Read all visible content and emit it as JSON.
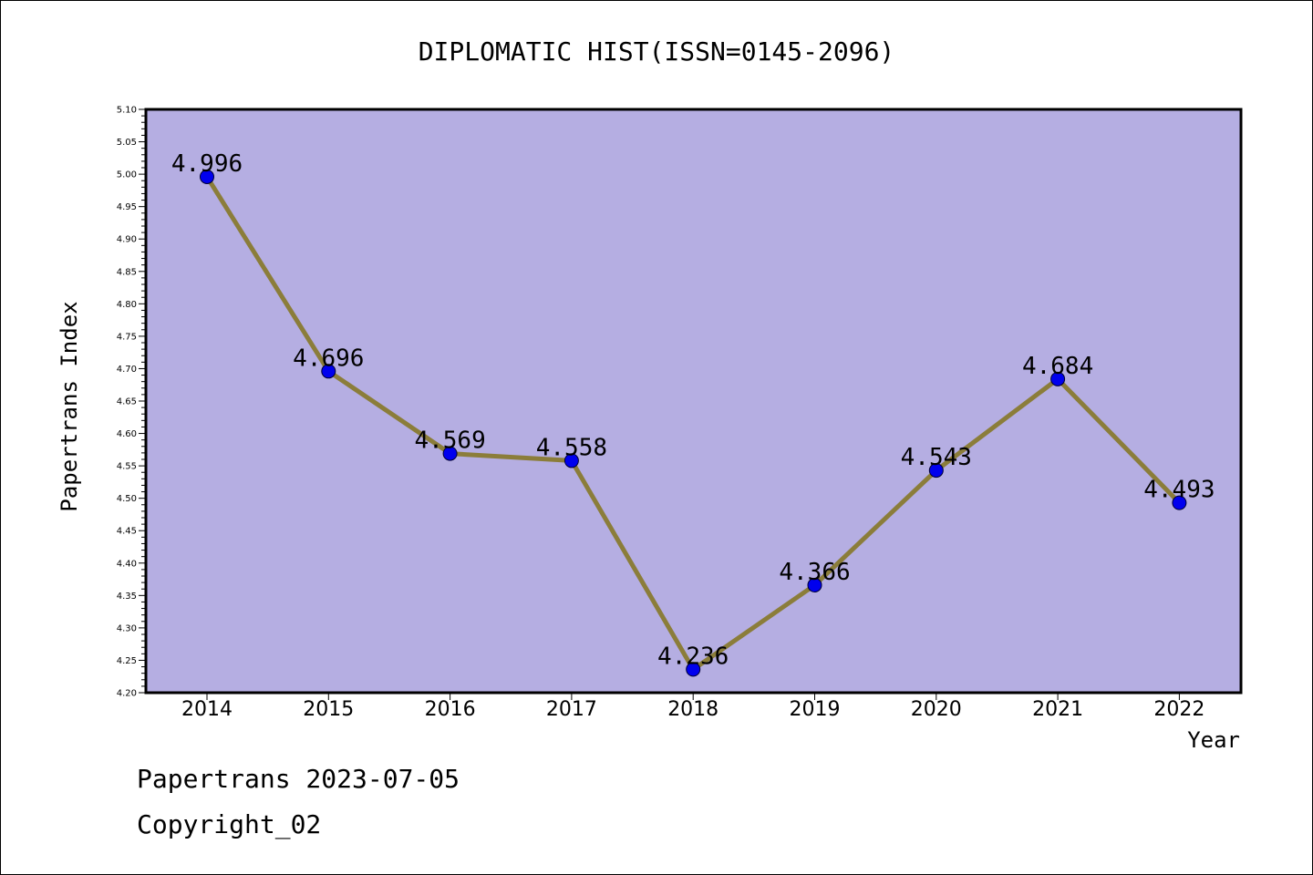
{
  "chart_data": {
    "type": "line",
    "title": "DIPLOMATIC HIST(ISSN=0145-2096)",
    "xlabel": "Year",
    "ylabel": "Papertrans Index",
    "categories": [
      "2014",
      "2015",
      "2016",
      "2017",
      "2018",
      "2019",
      "2020",
      "2021",
      "2022"
    ],
    "series": [
      {
        "values": [
          4.996,
          4.696,
          4.569,
          4.558,
          4.236,
          4.366,
          4.543,
          4.684,
          4.493
        ]
      }
    ],
    "data_labels": [
      "4.996",
      "4.696",
      "4.569",
      "4.558",
      "4.236",
      "4.366",
      "4.543",
      "4.684",
      "4.493"
    ],
    "ylim": [
      4.2,
      5.1
    ],
    "yticks": [
      "4.20",
      "4.25",
      "4.30",
      "4.35",
      "4.40",
      "4.45",
      "4.50",
      "4.55",
      "4.60",
      "4.65",
      "4.70",
      "4.75",
      "4.80",
      "4.85",
      "4.90",
      "4.95",
      "5.00",
      "5.05",
      "5.10"
    ],
    "grid": false,
    "colors": {
      "plot_background": "#b5aee2",
      "line": "#8b7d3a",
      "marker": "#0000ee"
    }
  },
  "footer": {
    "date_line": "Papertrans 2023-07-05",
    "copyright": "Copyright_02"
  }
}
